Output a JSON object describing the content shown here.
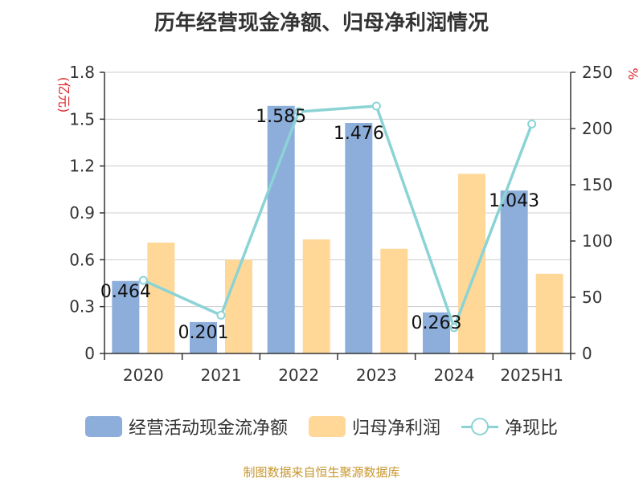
{
  "chart_data": {
    "type": "bar",
    "title": "历年经营现金净额、归母净利润情况",
    "categories": [
      "2020",
      "2021",
      "2022",
      "2023",
      "2024",
      "2025H1"
    ],
    "left_axis": {
      "unit_label": "(亿元)",
      "ylim": [
        0,
        1.8
      ],
      "ticks": [
        "0",
        "0.3",
        "0.6",
        "0.9",
        "1.2",
        "1.5",
        "1.8"
      ]
    },
    "right_axis": {
      "unit_label": "%",
      "ylim": [
        0,
        250
      ],
      "ticks": [
        "0",
        "50",
        "100",
        "150",
        "200",
        "250"
      ]
    },
    "grid": true,
    "legend_position": "bottom",
    "series": [
      {
        "name": "经营活动现金流净额",
        "kind": "bar",
        "axis": "left",
        "color": "#8daedb",
        "values": [
          0.464,
          0.201,
          1.585,
          1.476,
          0.263,
          1.043
        ],
        "labels": [
          "0.464",
          "0.201",
          "1.585",
          "1.476",
          "0.263",
          "1.043"
        ]
      },
      {
        "name": "归母净利润",
        "kind": "bar",
        "axis": "left",
        "color": "#ffd898",
        "values": [
          0.71,
          0.6,
          0.73,
          0.67,
          1.15,
          0.51
        ]
      },
      {
        "name": "净现比",
        "kind": "line",
        "axis": "right",
        "color": "#8bd3d5",
        "values": [
          65,
          34,
          215,
          220,
          23,
          204
        ]
      }
    ],
    "source": "制图数据来自恒生聚源数据库"
  }
}
